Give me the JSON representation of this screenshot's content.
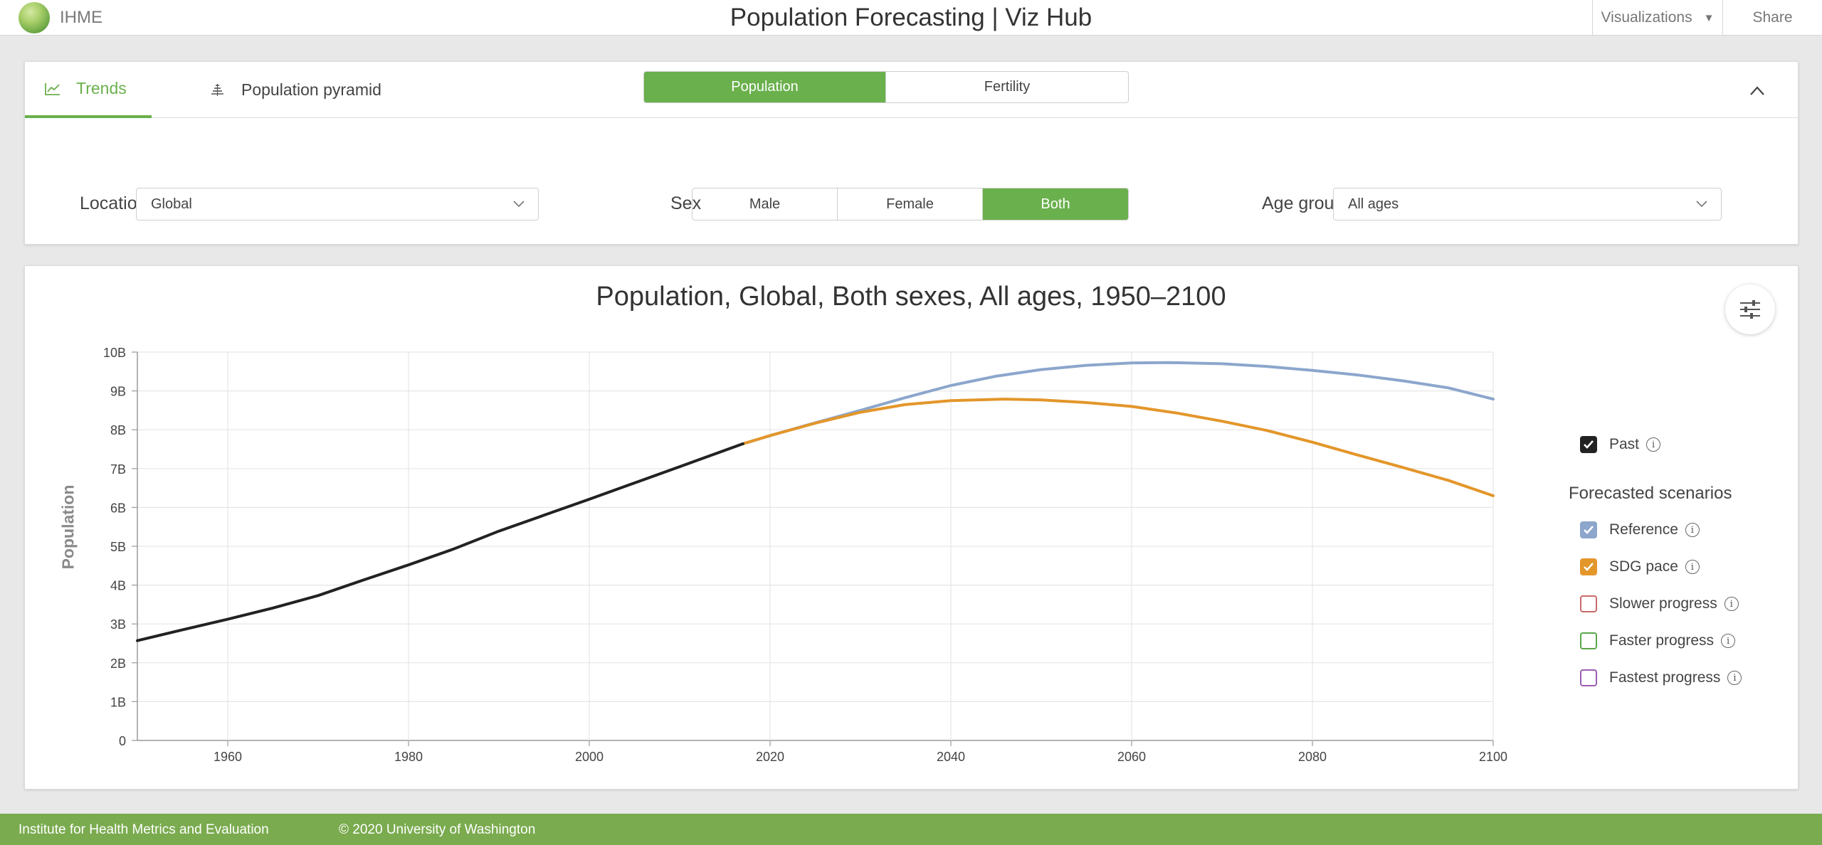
{
  "header": {
    "logo_text": "IHME",
    "title": "Population Forecasting | Viz Hub",
    "visualizations_label": "Visualizations",
    "share_label": "Share"
  },
  "tabs": [
    {
      "label": "Trends",
      "icon": "line-chart-icon",
      "active": true
    },
    {
      "label": "Population pyramid",
      "icon": "pyramid-icon",
      "active": false
    }
  ],
  "measure": {
    "options": [
      {
        "label": "Population",
        "active": true
      },
      {
        "label": "Fertility",
        "active": false
      }
    ]
  },
  "location": {
    "label": "Location",
    "value": "Global"
  },
  "sex": {
    "label": "Sex",
    "options": [
      {
        "label": "Male",
        "active": false
      },
      {
        "label": "Female",
        "active": false
      },
      {
        "label": "Both",
        "active": true
      }
    ]
  },
  "age_group": {
    "label": "Age group",
    "value": "All ages"
  },
  "legend": {
    "past": {
      "label": "Past",
      "checked": true,
      "color": "#222222"
    },
    "forecast_heading": "Forecasted scenarios",
    "scenarios": [
      {
        "label": "Reference",
        "checked": true,
        "color": "#8ca6cc"
      },
      {
        "label": "SDG pace",
        "checked": true,
        "color": "#e3962a"
      },
      {
        "label": "Slower progress",
        "checked": false,
        "color": "#c96a6a"
      },
      {
        "label": "Faster progress",
        "checked": false,
        "color": "#5aa64a"
      },
      {
        "label": "Fastest progress",
        "checked": false,
        "color": "#9a5cb4"
      }
    ]
  },
  "chart_data": {
    "type": "line",
    "title": "Population, Global, Both sexes, All ages, 1950–2100",
    "xlabel": "",
    "ylabel": "Population",
    "xlim": [
      1950,
      2100
    ],
    "ylim": [
      0,
      10
    ],
    "x_ticks": [
      "1960",
      "1980",
      "2000",
      "2020",
      "2040",
      "2060",
      "2080",
      "2100"
    ],
    "y_ticks": [
      "0",
      "1B",
      "2B",
      "3B",
      "4B",
      "5B",
      "6B",
      "7B",
      "8B",
      "9B",
      "10B"
    ],
    "grid": true,
    "legend_position": "right",
    "series": [
      {
        "name": "Past",
        "color": "#222222",
        "x": [
          1950,
          1955,
          1960,
          1965,
          1970,
          1975,
          1980,
          1985,
          1990,
          1995,
          2000,
          2005,
          2010,
          2017
        ],
        "y": [
          2.57,
          2.85,
          3.12,
          3.41,
          3.73,
          4.13,
          4.52,
          4.93,
          5.39,
          5.8,
          6.21,
          6.63,
          7.05,
          7.64
        ]
      },
      {
        "name": "Reference",
        "color": "#8ca6cc",
        "x": [
          2017,
          2020,
          2025,
          2030,
          2035,
          2040,
          2045,
          2050,
          2055,
          2060,
          2064,
          2070,
          2075,
          2080,
          2085,
          2090,
          2095,
          2100
        ],
        "y": [
          7.64,
          7.85,
          8.18,
          8.5,
          8.83,
          9.14,
          9.38,
          9.55,
          9.66,
          9.72,
          9.73,
          9.7,
          9.63,
          9.53,
          9.41,
          9.26,
          9.08,
          8.79
        ]
      },
      {
        "name": "SDG pace",
        "color": "#e3962a",
        "x": [
          2017,
          2020,
          2025,
          2030,
          2035,
          2040,
          2046,
          2050,
          2055,
          2060,
          2065,
          2070,
          2075,
          2080,
          2085,
          2090,
          2095,
          2100
        ],
        "y": [
          7.64,
          7.85,
          8.17,
          8.45,
          8.65,
          8.75,
          8.79,
          8.77,
          8.7,
          8.6,
          8.43,
          8.22,
          7.98,
          7.68,
          7.35,
          7.03,
          6.7,
          6.3
        ]
      }
    ]
  },
  "footer": {
    "org": "Institute for Health Metrics and Evaluation",
    "copyright": "© 2020 University of Washington"
  }
}
